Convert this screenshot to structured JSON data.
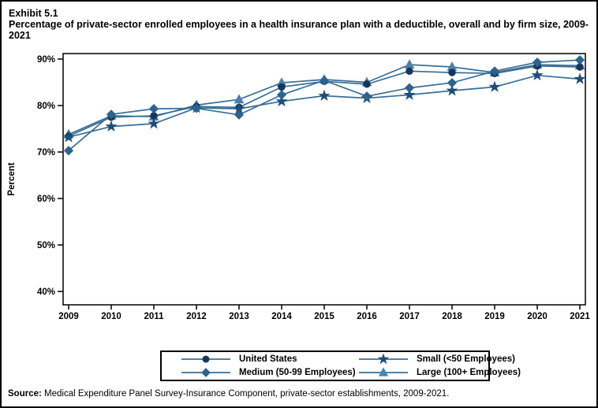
{
  "header": {
    "exhibit_label": "Exhibit 5.1",
    "title": "Percentage of private-sector enrolled employees in a health insurance plan with a deductible, overall and by firm size, 2009-2021"
  },
  "source": {
    "prefix": "Source:",
    "text": " Medical Expenditure Panel Survey-Insurance Component, private-sector establishments, 2009-2021."
  },
  "colors": {
    "line": "#3a6e96",
    "axis": "#000000",
    "text": "#000000"
  },
  "chart_data": {
    "type": "line",
    "title": "Percentage of private-sector enrolled employees in a health insurance plan with a deductible, overall and by firm size, 2009-2021",
    "xlabel": "",
    "ylabel": "Percent",
    "x": [
      2009,
      2010,
      2011,
      2012,
      2013,
      2014,
      2015,
      2016,
      2017,
      2018,
      2019,
      2020,
      2021
    ],
    "yticks": [
      "40%",
      "50%",
      "60%",
      "70%",
      "80%",
      "90%"
    ],
    "ylim": [
      37,
      91.5
    ],
    "grid": "off",
    "legend_position": "bottom",
    "series": [
      {
        "name": "United States",
        "marker": "circle",
        "color": "#16365c",
        "values": [
          73.4,
          77.5,
          77.8,
          79.8,
          79.6,
          84.0,
          85.2,
          84.6,
          87.4,
          87.1,
          86.9,
          88.5,
          88.3
        ]
      },
      {
        "name": "Small (<50 Employees)",
        "marker": "star",
        "color": "#1f4e79",
        "values": [
          73.2,
          75.5,
          76.1,
          79.5,
          79.3,
          80.9,
          82.1,
          81.6,
          82.3,
          83.2,
          84.0,
          86.5,
          85.7
        ]
      },
      {
        "name": "Medium (50-99 Employees)",
        "marker": "diamond",
        "color": "#2b6492",
        "values": [
          70.3,
          78.1,
          79.3,
          79.4,
          78.0,
          82.3,
          85.4,
          82.0,
          83.8,
          84.9,
          87.4,
          89.3,
          89.8
        ]
      },
      {
        "name": "Large (100+ Employees)",
        "marker": "triangle",
        "color": "#4a82ad",
        "values": [
          73.8,
          77.8,
          77.6,
          80.1,
          81.3,
          84.9,
          85.6,
          85.0,
          88.8,
          88.3,
          87.1,
          88.8,
          88.6
        ]
      }
    ]
  }
}
